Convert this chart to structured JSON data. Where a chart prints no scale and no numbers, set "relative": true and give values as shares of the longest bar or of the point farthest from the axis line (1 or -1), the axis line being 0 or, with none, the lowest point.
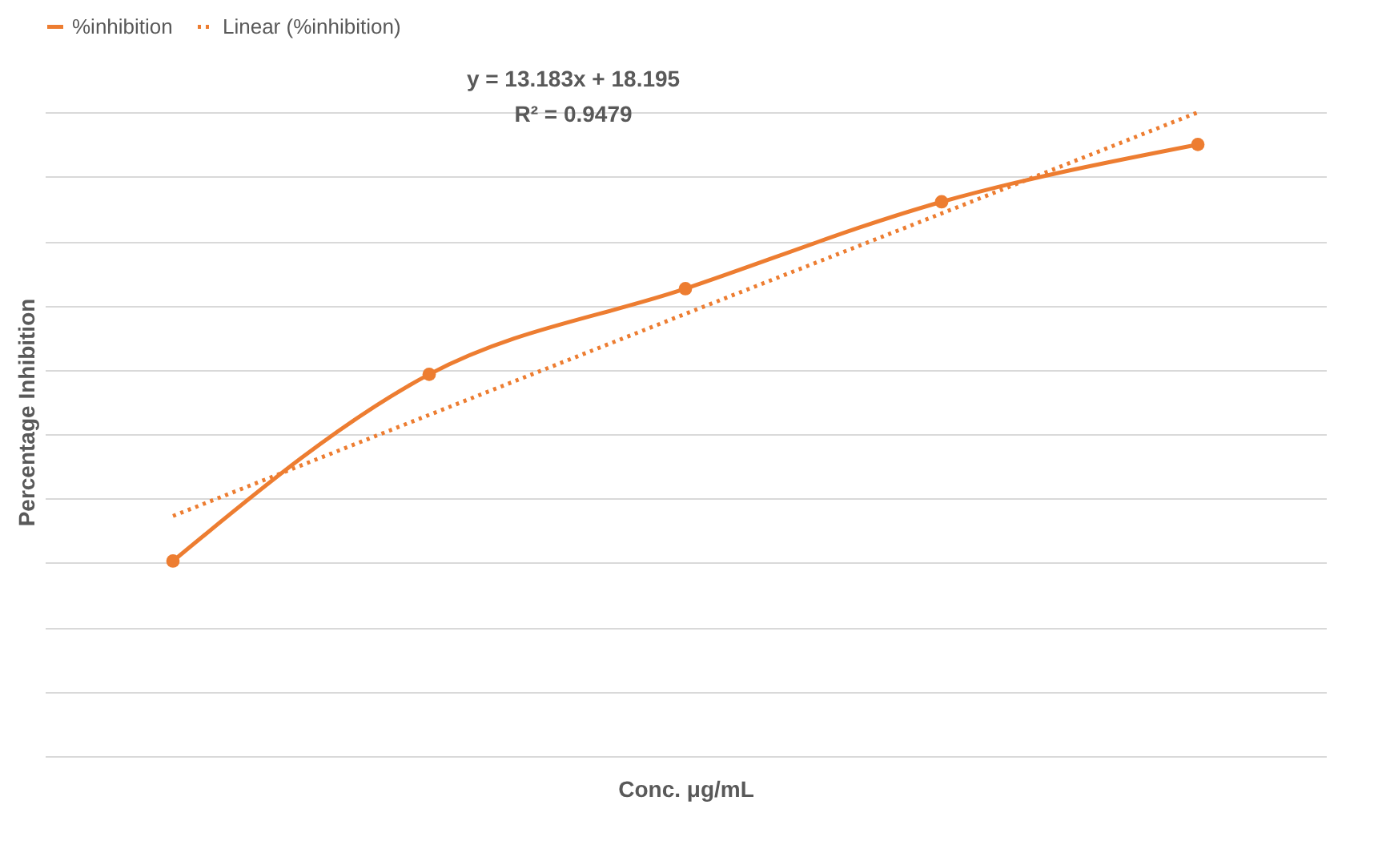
{
  "chart_data": {
    "type": "line",
    "relative": true,
    "xlabel": "Conc. μg/mL",
    "ylabel": "Percentage Inhibition",
    "categories": [
      null,
      null,
      null,
      null,
      null
    ],
    "series": [
      {
        "name": "%inhibition",
        "color": "#ed7d31",
        "type": "line",
        "marker": "circle",
        "line_style": "solid",
        "values": [
          0.303,
          0.593,
          0.726,
          0.861,
          0.95
        ]
      },
      {
        "name": "Linear (%inhibition)",
        "color": "#ed7d31",
        "type": "line",
        "marker": "none",
        "line_style": "dotted",
        "values": [
          0.373,
          0.53,
          0.687,
          0.843,
          1.0
        ]
      }
    ],
    "annotations": [
      "y = 13.183x + 18.195",
      "R² = 0.9479"
    ],
    "grid": "y",
    "legend": "top"
  }
}
